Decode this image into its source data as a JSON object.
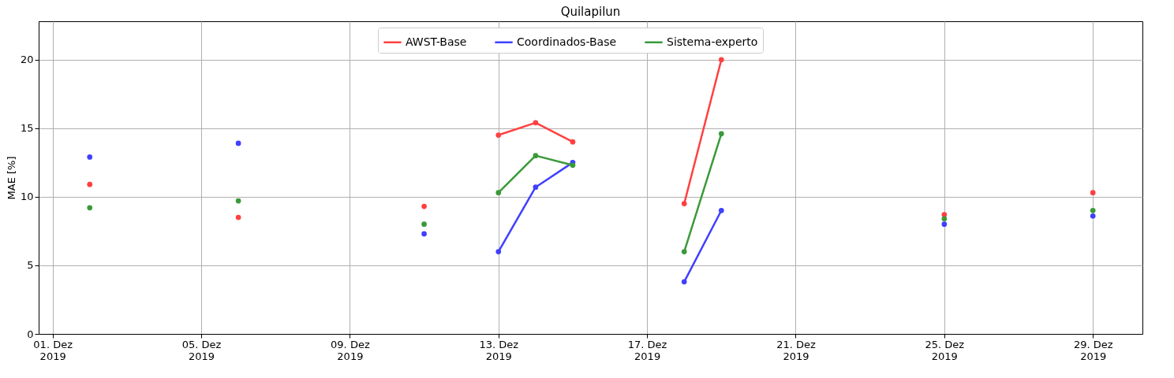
{
  "chart_data": {
    "type": "line",
    "title": "Quilapilun",
    "ylabel": "MAE [%]",
    "x": [
      "2019-12-02",
      "2019-12-03",
      "2019-12-06",
      "2019-12-07",
      "2019-12-11",
      "2019-12-12",
      "2019-12-13",
      "2019-12-14",
      "2019-12-15",
      "2019-12-16",
      "2019-12-18",
      "2019-12-19",
      "2019-12-20",
      "2019-12-25",
      "2019-12-26",
      "2019-12-29"
    ],
    "series": [
      {
        "name": "AWST-Base",
        "color": "#ff4040",
        "values": [
          10.9,
          null,
          8.5,
          null,
          9.3,
          null,
          14.5,
          15.4,
          14.0,
          null,
          9.5,
          20.0,
          null,
          8.7,
          null,
          10.3
        ]
      },
      {
        "name": "Coordinados-Base",
        "color": "#4040ff",
        "values": [
          12.9,
          null,
          13.9,
          null,
          7.3,
          null,
          6.0,
          10.7,
          12.5,
          null,
          3.8,
          9.0,
          null,
          8.0,
          null,
          8.6
        ]
      },
      {
        "name": "Sistema-experto",
        "color": "#3a9a3a",
        "values": [
          9.2,
          null,
          9.7,
          null,
          8.0,
          null,
          10.3,
          13.0,
          12.3,
          null,
          6.0,
          14.6,
          null,
          8.4,
          null,
          9.0
        ]
      }
    ],
    "xlim": [
      "2019-11-30T15:00",
      "2019-12-30T08:00"
    ],
    "xticks": [
      {
        "value": "2019-12-01",
        "label": "01. Dez\n2019"
      },
      {
        "value": "2019-12-05",
        "label": "05. Dez\n2019"
      },
      {
        "value": "2019-12-09",
        "label": "09. Dez\n2019"
      },
      {
        "value": "2019-12-13",
        "label": "13. Dez\n2019"
      },
      {
        "value": "2019-12-17",
        "label": "17. Dez\n2019"
      },
      {
        "value": "2019-12-21",
        "label": "21. Dez\n2019"
      },
      {
        "value": "2019-12-25",
        "label": "25. Dez\n2019"
      },
      {
        "value": "2019-12-29",
        "label": "29. Dez\n2019"
      }
    ],
    "ylim": [
      0,
      22.8
    ],
    "yticks": [
      0,
      5,
      10,
      15,
      20
    ],
    "grid": true,
    "legend": "top",
    "marker": "circle",
    "line_style": "solid"
  }
}
